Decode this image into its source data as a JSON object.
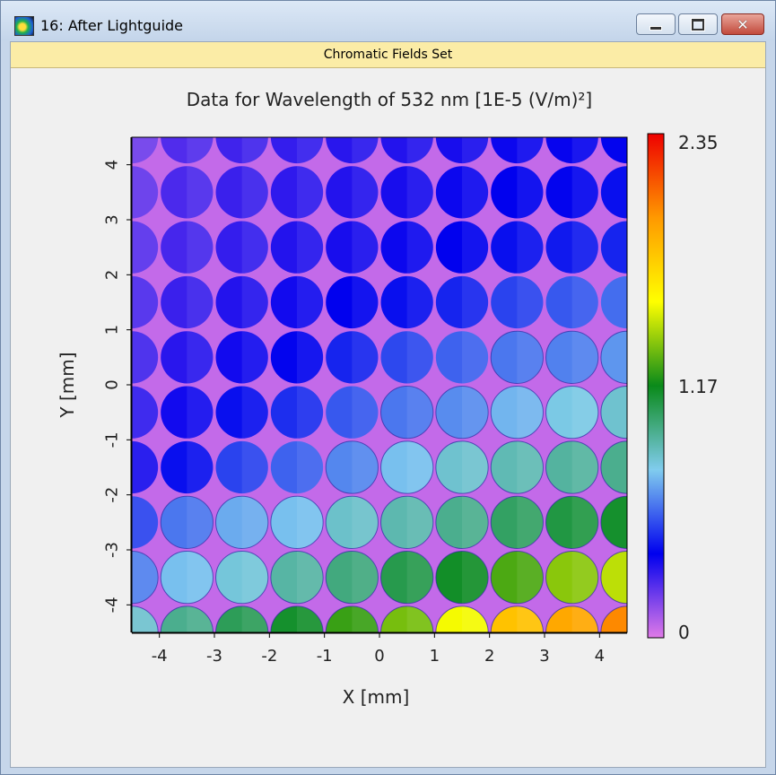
{
  "window": {
    "title": "16: After Lightguide",
    "banner": "Chromatic Fields Set",
    "buttons": {
      "minimize": "minimize",
      "maximize": "maximize",
      "close": "✕"
    }
  },
  "chart_data": {
    "type": "heatmap",
    "title": "Data for Wavelength of 532 nm  [1E-5 (V/m)²]",
    "xlabel": "X [mm]",
    "ylabel": "Y [mm]",
    "xlim": [
      -4.5,
      4.5
    ],
    "ylim": [
      -4.5,
      4.5
    ],
    "x_ticks": [
      -4,
      -3,
      -2,
      -1,
      0,
      1,
      2,
      3,
      4
    ],
    "y_ticks": [
      -4,
      -3,
      -2,
      -1,
      0,
      1,
      2,
      3,
      4
    ],
    "colorbar": {
      "min": 0,
      "max": 2.35,
      "tick_labels": [
        "2.35",
        "1.17",
        "0"
      ],
      "tick_values": [
        2.35,
        1.17,
        0
      ],
      "colors": [
        "#e07ae8",
        "#0000ee",
        "#80ccee",
        "#0a8a1a",
        "#ffff00",
        "#ff9900",
        "#ee0000"
      ]
    },
    "background_value": 0.05,
    "grid": false,
    "lenslet_centers_x": [
      -4.5,
      -3.5,
      -2.5,
      -1.5,
      -0.5,
      0.5,
      1.5,
      2.5,
      3.5,
      4.5
    ],
    "lenslet_centers_y": [
      4.5,
      3.5,
      2.5,
      1.5,
      0.5,
      -0.5,
      -1.5,
      -2.5,
      -3.5,
      -4.5
    ],
    "lenslet_diameter": 0.95,
    "values": [
      [
        0.2,
        0.25,
        0.28,
        0.3,
        0.32,
        0.33,
        0.35,
        0.37,
        0.38,
        0.4
      ],
      [
        0.22,
        0.26,
        0.29,
        0.31,
        0.33,
        0.35,
        0.37,
        0.39,
        0.4,
        0.42
      ],
      [
        0.24,
        0.27,
        0.3,
        0.33,
        0.35,
        0.37,
        0.39,
        0.42,
        0.44,
        0.46
      ],
      [
        0.26,
        0.29,
        0.33,
        0.36,
        0.39,
        0.42,
        0.46,
        0.52,
        0.56,
        0.6
      ],
      [
        0.28,
        0.32,
        0.36,
        0.4,
        0.46,
        0.53,
        0.58,
        0.62,
        0.64,
        0.68
      ],
      [
        0.31,
        0.36,
        0.42,
        0.48,
        0.56,
        0.62,
        0.66,
        0.74,
        0.8,
        0.84
      ],
      [
        0.35,
        0.42,
        0.52,
        0.58,
        0.65,
        0.76,
        0.84,
        0.89,
        0.93,
        0.96
      ],
      [
        0.52,
        0.62,
        0.72,
        0.76,
        0.85,
        0.9,
        0.96,
        1.04,
        1.1,
        1.14
      ],
      [
        0.64,
        0.76,
        0.82,
        0.92,
        0.99,
        1.08,
        1.15,
        1.28,
        1.38,
        1.46
      ],
      [
        0.84,
        0.96,
        1.06,
        1.14,
        1.25,
        1.35,
        1.55,
        1.8,
        1.9,
        2.0
      ]
    ]
  }
}
